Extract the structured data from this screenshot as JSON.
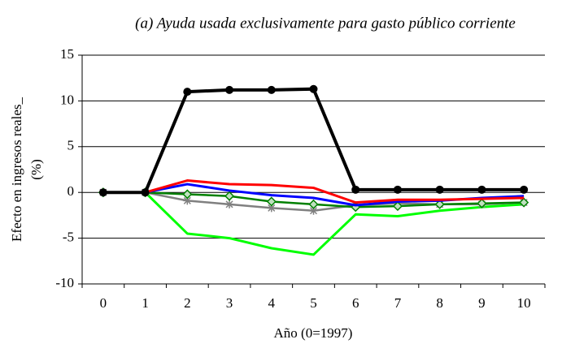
{
  "chart_data": {
    "type": "line",
    "title": "(a)  Ayuda usada exclusivamente para gasto público corriente",
    "xlabel": "Año (0=1997)",
    "ylabel": [
      "Efecto en ingresos reales_",
      "(%)"
    ],
    "categories": [
      "0",
      "1",
      "2",
      "3",
      "4",
      "5",
      "6",
      "7",
      "8",
      "9",
      "10"
    ],
    "ylim": [
      -10,
      15
    ],
    "yticks": [
      -10,
      -5,
      0,
      5,
      10,
      15
    ],
    "grid": true,
    "series": [
      {
        "color": "#00ff00",
        "marker": "none",
        "values": [
          0,
          0,
          -4.5,
          -5.0,
          -6.1,
          -6.8,
          -2.4,
          -2.6,
          -2.0,
          -1.6,
          -1.3
        ]
      },
      {
        "color": "#808080",
        "marker": "asterisk",
        "values": [
          0,
          0,
          -0.9,
          -1.3,
          -1.7,
          -2.0,
          -1.4,
          -1.2,
          -1.3,
          -1.3,
          -1.1
        ]
      },
      {
        "color": "#008000",
        "marker": "diamond",
        "values": [
          0,
          0,
          -0.2,
          -0.4,
          -1.0,
          -1.3,
          -1.6,
          -1.5,
          -1.3,
          -1.2,
          -1.1
        ]
      },
      {
        "color": "#0000ff",
        "marker": "none",
        "values": [
          0,
          0,
          0.9,
          0.2,
          -0.3,
          -0.6,
          -1.4,
          -1.0,
          -0.9,
          -0.6,
          -0.4
        ]
      },
      {
        "color": "#ff0000",
        "marker": "none",
        "values": [
          0,
          0,
          1.3,
          0.9,
          0.8,
          0.5,
          -1.1,
          -0.8,
          -0.8,
          -0.7,
          -0.6
        ]
      },
      {
        "color": "#000000",
        "marker": "circle",
        "values": [
          0,
          0,
          11.0,
          11.2,
          11.2,
          11.3,
          0.3,
          0.3,
          0.3,
          0.3,
          0.3
        ]
      }
    ]
  }
}
